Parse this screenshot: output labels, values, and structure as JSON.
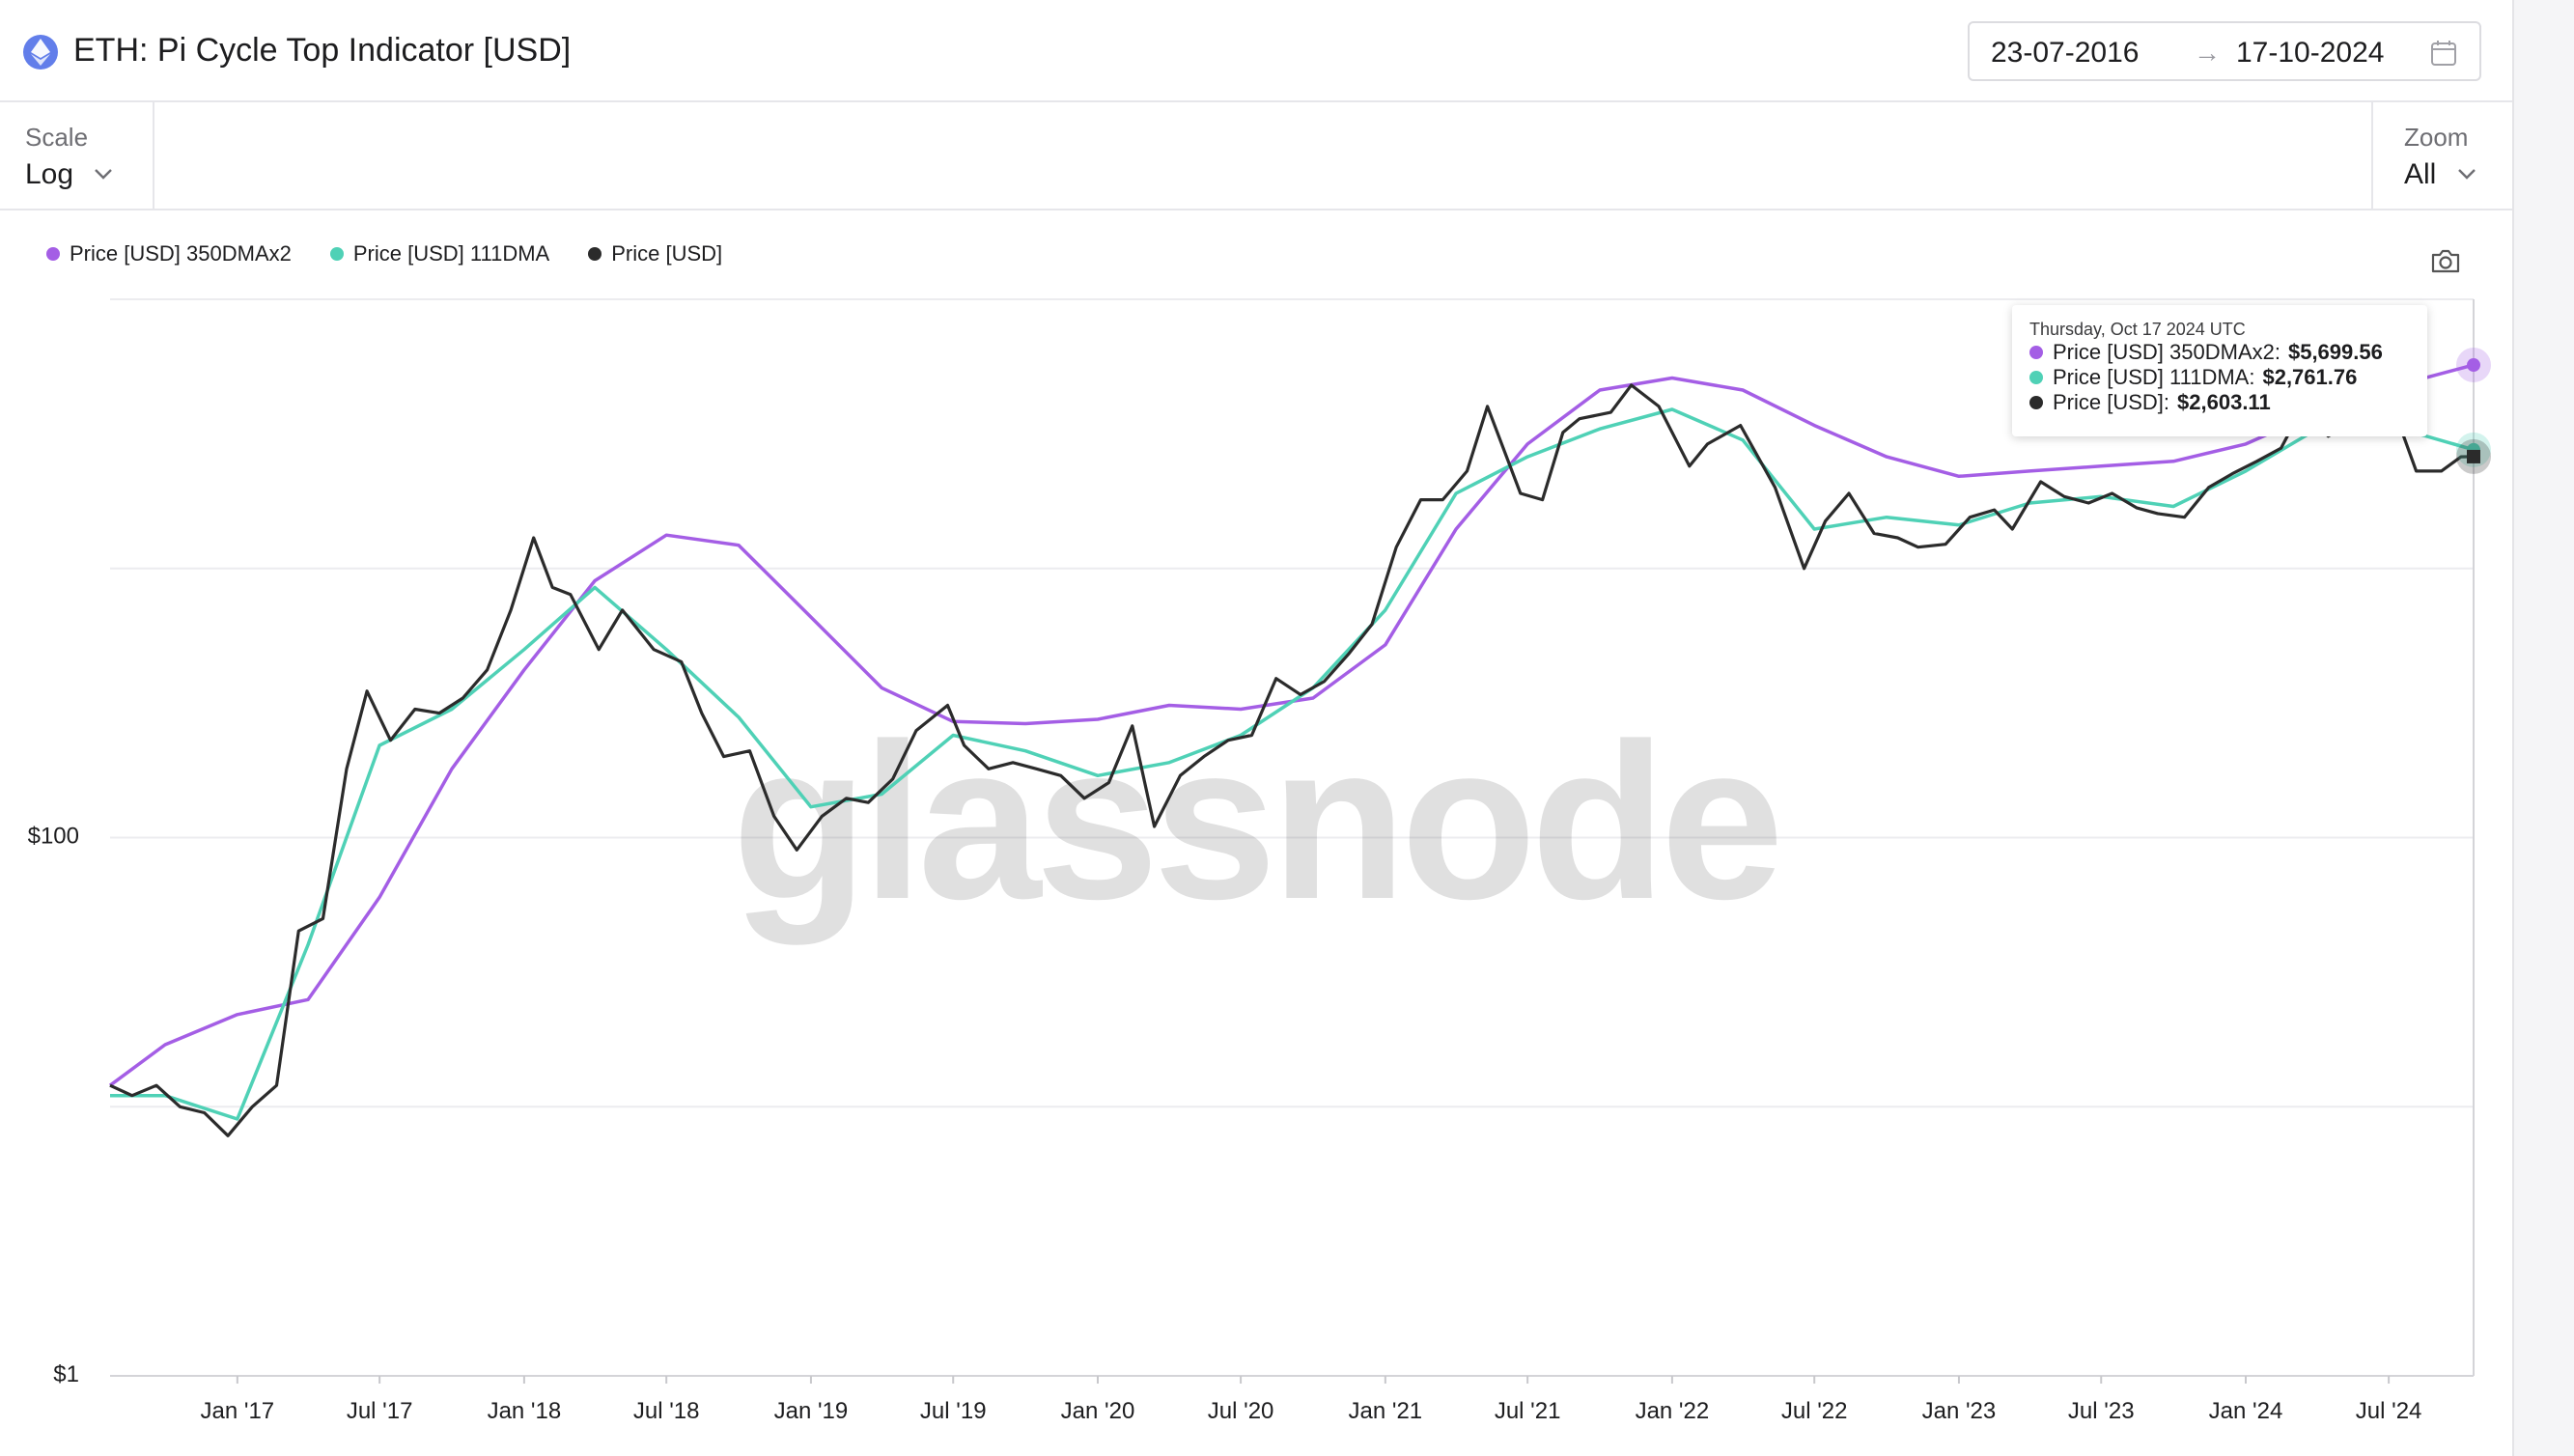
{
  "header": {
    "title": "ETH: Pi Cycle Top Indicator [USD]",
    "date_start": "23-07-2016",
    "date_arrow": "→",
    "date_end": "17-10-2024"
  },
  "toolbar": {
    "scale_label": "Scale",
    "scale_value": "Log",
    "zoom_label": "Zoom",
    "zoom_value": "All"
  },
  "legend": [
    {
      "label": "Price [USD] 350DMAx2",
      "color": "#a45ee5"
    },
    {
      "label": "Price [USD] 111DMA",
      "color": "#4fd1b6"
    },
    {
      "label": "Price [USD]",
      "color": "#2b2b2b"
    }
  ],
  "icons": {
    "asset": "ethereum-icon",
    "calendar": "calendar-icon",
    "camera": "camera-icon",
    "chevron": "chevron-down-icon"
  },
  "watermark": "glassnode",
  "tooltip": {
    "date": "Thursday, Oct 17 2024 UTC",
    "rows": [
      {
        "label": "Price [USD] 350DMAx2:",
        "value": "$5,699.56",
        "color": "#a45ee5"
      },
      {
        "label": "Price [USD] 111DMA:",
        "value": "$2,761.76",
        "color": "#4fd1b6"
      },
      {
        "label": "Price [USD]:",
        "value": "$2,603.11",
        "color": "#2b2b2b"
      }
    ]
  },
  "chart_data": {
    "type": "line",
    "scale": "log",
    "ylim": [
      1,
      10000
    ],
    "yticks": [
      {
        "value": 1,
        "label": "$1"
      },
      {
        "value": 100,
        "label": "$100"
      }
    ],
    "xlim": [
      "2016-07-23",
      "2024-10-17"
    ],
    "xticks": [
      "Jan '17",
      "Jul '17",
      "Jan '18",
      "Jul '18",
      "Jan '19",
      "Jul '19",
      "Jan '20",
      "Jul '20",
      "Jan '21",
      "Jul '21",
      "Jan '22",
      "Jul '22",
      "Jan '23",
      "Jul '23",
      "Jan '24",
      "Jul '24"
    ],
    "grid": true,
    "legend_position": "top-left",
    "series": [
      {
        "name": "Price [USD] 350DMAx2",
        "color": "#a45ee5",
        "x": [
          "2016-07-23",
          "2016-10-01",
          "2017-01-01",
          "2017-04-01",
          "2017-07-01",
          "2017-10-01",
          "2018-01-01",
          "2018-04-01",
          "2018-07-01",
          "2018-10-01",
          "2019-01-01",
          "2019-04-01",
          "2019-07-01",
          "2019-10-01",
          "2020-01-01",
          "2020-04-01",
          "2020-07-01",
          "2020-10-01",
          "2021-01-01",
          "2021-04-01",
          "2021-07-01",
          "2021-10-01",
          "2022-01-01",
          "2022-04-01",
          "2022-07-01",
          "2022-10-01",
          "2023-01-01",
          "2023-04-01",
          "2023-07-01",
          "2023-10-01",
          "2024-01-01",
          "2024-04-01",
          "2024-07-01",
          "2024-10-17"
        ],
        "values": [
          12,
          17,
          22,
          25,
          60,
          180,
          420,
          900,
          1330,
          1220,
          660,
          360,
          270,
          265,
          275,
          310,
          300,
          330,
          520,
          1400,
          2900,
          4600,
          5100,
          4600,
          3400,
          2600,
          2200,
          2300,
          2400,
          2500,
          2900,
          3800,
          4700,
          5700
        ]
      },
      {
        "name": "Price [USD] 111DMA",
        "color": "#4fd1b6",
        "x": [
          "2016-07-23",
          "2016-10-01",
          "2017-01-01",
          "2017-04-01",
          "2017-07-01",
          "2017-10-01",
          "2018-01-01",
          "2018-04-01",
          "2018-07-01",
          "2018-10-01",
          "2019-01-01",
          "2019-04-01",
          "2019-07-01",
          "2019-10-01",
          "2020-01-01",
          "2020-04-01",
          "2020-07-01",
          "2020-10-01",
          "2021-01-01",
          "2021-04-01",
          "2021-07-01",
          "2021-10-01",
          "2022-01-01",
          "2022-04-01",
          "2022-07-01",
          "2022-10-01",
          "2023-01-01",
          "2023-04-01",
          "2023-07-01",
          "2023-10-01",
          "2024-01-01",
          "2024-04-01",
          "2024-07-01",
          "2024-10-17"
        ],
        "values": [
          11,
          11,
          9,
          40,
          220,
          300,
          500,
          850,
          500,
          280,
          130,
          145,
          240,
          210,
          170,
          190,
          240,
          360,
          700,
          1900,
          2600,
          3300,
          3900,
          3000,
          1400,
          1550,
          1450,
          1750,
          1850,
          1700,
          2300,
          3300,
          3400,
          2760
        ]
      },
      {
        "name": "Price [USD]",
        "color": "#2b2b2b",
        "x": [
          "2016-07-23",
          "2016-08-20",
          "2016-09-20",
          "2016-10-20",
          "2016-11-20",
          "2016-12-20",
          "2017-01-20",
          "2017-02-20",
          "2017-03-20",
          "2017-04-20",
          "2017-05-20",
          "2017-06-15",
          "2017-07-15",
          "2017-08-15",
          "2017-09-15",
          "2017-10-15",
          "2017-11-15",
          "2017-12-15",
          "2018-01-13",
          "2018-02-06",
          "2018-03-01",
          "2018-04-06",
          "2018-05-06",
          "2018-06-15",
          "2018-07-20",
          "2018-08-15",
          "2018-09-12",
          "2018-10-15",
          "2018-11-15",
          "2018-12-14",
          "2019-01-15",
          "2019-02-15",
          "2019-03-15",
          "2019-04-15",
          "2019-05-15",
          "2019-06-24",
          "2019-07-15",
          "2019-08-15",
          "2019-09-15",
          "2019-10-15",
          "2019-11-15",
          "2019-12-15",
          "2020-01-15",
          "2020-02-14",
          "2020-03-13",
          "2020-04-15",
          "2020-05-15",
          "2020-06-15",
          "2020-07-15",
          "2020-08-15",
          "2020-09-15",
          "2020-10-15",
          "2020-11-15",
          "2020-12-15",
          "2021-01-15",
          "2021-02-15",
          "2021-03-15",
          "2021-04-15",
          "2021-05-11",
          "2021-06-22",
          "2021-07-20",
          "2021-08-15",
          "2021-09-05",
          "2021-10-15",
          "2021-11-10",
          "2021-12-15",
          "2022-01-23",
          "2022-02-15",
          "2022-03-29",
          "2022-05-12",
          "2022-06-18",
          "2022-07-15",
          "2022-08-14",
          "2022-09-15",
          "2022-10-15",
          "2022-11-10",
          "2022-12-15",
          "2023-01-15",
          "2023-02-15",
          "2023-03-10",
          "2023-04-15",
          "2023-05-15",
          "2023-06-15",
          "2023-07-15",
          "2023-08-15",
          "2023-09-11",
          "2023-10-15",
          "2023-11-15",
          "2023-12-15",
          "2024-01-15",
          "2024-02-15",
          "2024-03-12",
          "2024-04-15",
          "2024-05-15",
          "2024-06-15",
          "2024-07-15",
          "2024-08-05",
          "2024-09-06",
          "2024-10-01",
          "2024-10-17"
        ],
        "values": [
          12,
          11,
          12,
          10,
          9.5,
          7.8,
          10,
          12,
          45,
          50,
          180,
          350,
          230,
          300,
          290,
          330,
          420,
          700,
          1300,
          850,
          800,
          500,
          700,
          500,
          450,
          290,
          200,
          210,
          120,
          90,
          120,
          140,
          135,
          165,
          250,
          310,
          220,
          180,
          190,
          180,
          170,
          140,
          160,
          260,
          110,
          170,
          200,
          230,
          240,
          390,
          340,
          380,
          480,
          620,
          1200,
          1800,
          1800,
          2300,
          4000,
          1900,
          1800,
          3200,
          3600,
          3800,
          4800,
          4000,
          2400,
          2900,
          3400,
          2000,
          1000,
          1500,
          1900,
          1350,
          1300,
          1200,
          1230,
          1550,
          1650,
          1400,
          2100,
          1850,
          1750,
          1900,
          1680,
          1600,
          1550,
          2000,
          2250,
          2500,
          2800,
          3900,
          3100,
          3500,
          3600,
          3400,
          2300,
          2300,
          2600,
          2603
        ]
      }
    ]
  }
}
